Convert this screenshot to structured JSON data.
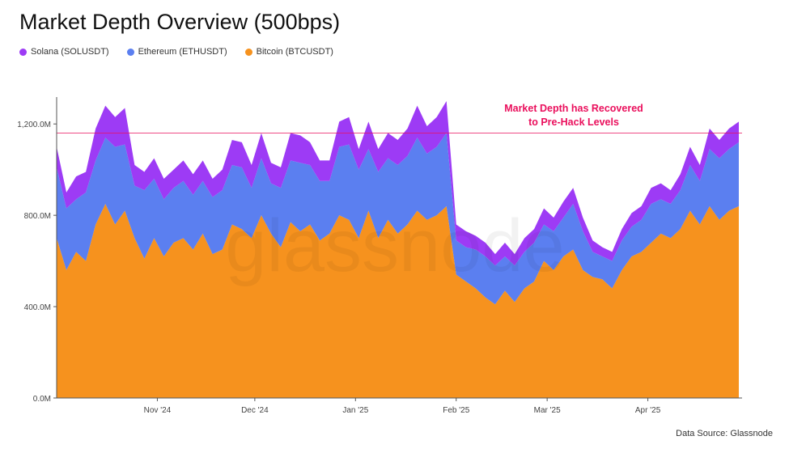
{
  "title": "Market Depth Overview (500bps)",
  "source": "Data Source: Glassnode",
  "watermark": "glassnode",
  "colors": {
    "Solana (SOLUSDT)": "#9d3bf5",
    "Ethereum (ETHUSDT)": "#5b7ff0",
    "Bitcoin (BTCUSDT)": "#f6921e",
    "annotation": "#ea0f5c"
  },
  "annotation": {
    "line1": "Market Depth has Recovered",
    "line2": "to Pre-Hack Levels",
    "level": 1160
  },
  "chart_data": {
    "type": "area",
    "stacked": true,
    "title": "Market Depth Overview (500bps)",
    "xlabel": "",
    "ylabel": "",
    "ylim": [
      0,
      1300
    ],
    "yticks": [
      0,
      400,
      800,
      1200
    ],
    "ytick_labels": [
      "0.0M",
      "400.0M",
      "800.0M",
      "1,200.0M"
    ],
    "x_ticks": [
      {
        "label": "Nov '24",
        "day": 31
      },
      {
        "label": "Dec '24",
        "day": 61
      },
      {
        "label": "Jan '25",
        "day": 92
      },
      {
        "label": "Feb '25",
        "day": 123
      },
      {
        "label": "Mar '25",
        "day": 151
      },
      {
        "label": "Apr '25",
        "day": 182
      }
    ],
    "x_range": [
      0,
      211
    ],
    "x_sample_days": [
      0,
      3,
      6,
      9,
      12,
      15,
      18,
      21,
      24,
      27,
      30,
      33,
      36,
      39,
      42,
      45,
      48,
      51,
      54,
      57,
      60,
      63,
      66,
      69,
      72,
      75,
      78,
      81,
      84,
      87,
      90,
      93,
      96,
      99,
      102,
      105,
      108,
      111,
      114,
      117,
      120,
      123,
      126,
      129,
      132,
      135,
      138,
      141,
      144,
      147,
      150,
      153,
      156,
      159,
      162,
      165,
      168,
      171,
      174,
      177,
      180,
      183,
      186,
      189,
      192,
      195,
      198,
      201,
      204,
      207,
      210
    ],
    "legend": "top-left",
    "grid": false,
    "series": [
      {
        "name": "Bitcoin (BTCUSDT)",
        "values": [
          700,
          560,
          640,
          600,
          760,
          850,
          760,
          820,
          700,
          610,
          700,
          620,
          680,
          700,
          650,
          720,
          630,
          650,
          760,
          740,
          700,
          800,
          720,
          660,
          770,
          730,
          760,
          690,
          720,
          800,
          780,
          700,
          820,
          700,
          780,
          720,
          760,
          820,
          780,
          800,
          840,
          540,
          510,
          480,
          440,
          410,
          470,
          420,
          480,
          510,
          600,
          560,
          620,
          650,
          560,
          530,
          520,
          480,
          560,
          620,
          640,
          680,
          720,
          700,
          740,
          820,
          760,
          840,
          780,
          820,
          840
        ]
      },
      {
        "name": "Ethereum (ETHUSDT)",
        "values": [
          310,
          270,
          230,
          300,
          280,
          290,
          340,
          290,
          230,
          300,
          260,
          250,
          240,
          250,
          240,
          230,
          250,
          260,
          260,
          270,
          220,
          250,
          220,
          260,
          270,
          300,
          260,
          260,
          230,
          300,
          330,
          300,
          270,
          290,
          270,
          300,
          300,
          320,
          290,
          300,
          320,
          150,
          150,
          170,
          180,
          170,
          150,
          160,
          160,
          170,
          160,
          170,
          170,
          200,
          170,
          110,
          100,
          120,
          130,
          130,
          140,
          170,
          150,
          150,
          170,
          200,
          190,
          250,
          270,
          270,
          280
        ]
      },
      {
        "name": "Solana (SOLUSDT)",
        "values": [
          90,
          70,
          100,
          90,
          140,
          140,
          130,
          160,
          90,
          80,
          90,
          90,
          80,
          90,
          90,
          90,
          80,
          90,
          110,
          110,
          100,
          110,
          90,
          90,
          120,
          120,
          100,
          90,
          90,
          110,
          120,
          90,
          120,
          100,
          110,
          110,
          120,
          140,
          120,
          130,
          140,
          70,
          70,
          60,
          60,
          50,
          60,
          50,
          60,
          60,
          70,
          60,
          70,
          70,
          60,
          50,
          40,
          40,
          50,
          60,
          60,
          70,
          70,
          60,
          70,
          80,
          70,
          90,
          80,
          90,
          90
        ]
      }
    ]
  }
}
